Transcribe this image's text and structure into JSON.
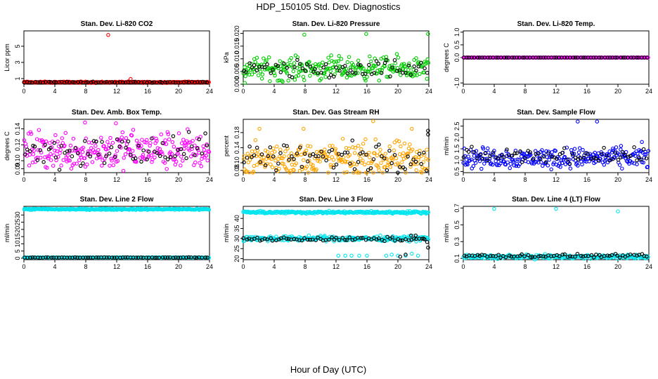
{
  "title": "HDP_150105  Std. Dev. Diagnostics",
  "xlabel": "Hour of Day (UTC)",
  "chart_data": [
    {
      "type": "scatter",
      "title": "Stan. Dev. Li-820 CO2",
      "ylabel": "Licor ppm",
      "xlim": [
        0,
        24
      ],
      "xticks": [
        0,
        4,
        8,
        12,
        16,
        20,
        24
      ],
      "ylim": [
        0.3,
        6.9
      ],
      "yticks": [
        1,
        3,
        5
      ],
      "series": [
        {
          "color": "#ff0000",
          "baseline": 0.55,
          "spread": 0.04,
          "outliers": [
            [
              10.9,
              6.4
            ],
            [
              13.8,
              0.95
            ],
            [
              0.05,
              0.6
            ]
          ]
        },
        {
          "color": "#000000",
          "baseline": 0.55,
          "spread": 0.03,
          "outliers": []
        }
      ]
    },
    {
      "type": "scatter",
      "title": "Stan. Dev. Li-820 Pressure",
      "ylabel": "kPa",
      "xlim": [
        0,
        24
      ],
      "xticks": [
        0,
        4,
        8,
        12,
        16,
        20,
        24
      ],
      "ylim": [
        0,
        0.021
      ],
      "yticks": [
        0.0,
        0.005,
        0.01,
        0.015,
        0.02
      ],
      "series": [
        {
          "color": "#00cc00",
          "baseline": 0.0062,
          "spread": 0.0022,
          "outliers": [
            [
              7.9,
              0.0195
            ],
            [
              15.9,
              0.0198
            ],
            [
              23.9,
              0.0198
            ],
            [
              0.2,
              0.0005
            ],
            [
              5.1,
              0.001
            ]
          ]
        },
        {
          "color": "#000000",
          "baseline": 0.0055,
          "spread": 0.0018,
          "outliers": []
        }
      ]
    },
    {
      "type": "scatter",
      "title": "Stan. Dev. Li-820 Temp.",
      "ylabel": "degrees C",
      "xlim": [
        0,
        24
      ],
      "xticks": [
        0,
        4,
        8,
        12,
        16,
        20,
        24
      ],
      "ylim": [
        -1.05,
        1.05
      ],
      "yticks": [
        -1.0,
        0.0,
        0.5,
        1.0
      ],
      "series": [
        {
          "color": "#ff00ff",
          "baseline": 0.0,
          "spread": 0.0,
          "outliers": []
        },
        {
          "color": "#000000",
          "baseline": 0.0,
          "spread": 0.0,
          "outliers": []
        }
      ]
    },
    {
      "type": "scatter",
      "title": "Stan. Dev. Amb. Box Temp.",
      "ylabel": "degrees C",
      "xlim": [
        0,
        24
      ],
      "xticks": [
        0,
        4,
        8,
        12,
        16,
        20,
        24
      ],
      "ylim": [
        0.085,
        0.152
      ],
      "yticks": [
        0.09,
        0.1,
        0.12,
        0.14
      ],
      "series": [
        {
          "color": "#ff00ff",
          "baseline": 0.113,
          "spread": 0.012,
          "outliers": [
            [
              7.9,
              0.148
            ],
            [
              11.9,
              0.147
            ]
          ]
        },
        {
          "color": "#000000",
          "baseline": 0.112,
          "spread": 0.01,
          "outliers": []
        }
      ]
    },
    {
      "type": "scatter",
      "title": "Stan. Dev. Gas Stream RH",
      "ylabel": "percent",
      "xlim": [
        0,
        24
      ],
      "xticks": [
        0,
        4,
        8,
        12,
        16,
        20,
        24
      ],
      "ylim": [
        0.074,
        0.215
      ],
      "yticks": [
        0.08,
        0.1,
        0.14,
        0.18
      ],
      "series": [
        {
          "color": "#ffa500",
          "baseline": 0.11,
          "spread": 0.022,
          "outliers": [
            [
              2.1,
              0.19
            ],
            [
              7.8,
              0.19
            ],
            [
              16.8,
              0.21
            ],
            [
              21.8,
              0.19
            ]
          ]
        },
        {
          "color": "#000000",
          "baseline": 0.115,
          "spread": 0.02,
          "outliers": [
            [
              23.9,
              0.185
            ],
            [
              23.9,
              0.175
            ]
          ]
        }
      ]
    },
    {
      "type": "scatter",
      "title": "Stan. Dev. Sample Flow",
      "ylabel": "ml/min",
      "xlim": [
        0,
        24
      ],
      "xticks": [
        0,
        4,
        8,
        12,
        16,
        20,
        24
      ],
      "ylim": [
        0.45,
        2.8
      ],
      "yticks": [
        0.5,
        1.0,
        1.5,
        2.0,
        2.5
      ],
      "series": [
        {
          "color": "#0000ff",
          "baseline": 1.1,
          "spread": 0.22,
          "outliers": [
            [
              14.8,
              2.7
            ],
            [
              17.3,
              2.7
            ],
            [
              23.1,
              1.8
            ]
          ]
        },
        {
          "color": "#000000",
          "baseline": 1.2,
          "spread": 0.15,
          "outliers": []
        }
      ]
    },
    {
      "type": "scatter",
      "title": "Stan. Dev. Line 2 Flow",
      "ylabel": "ml/min",
      "xlim": [
        0,
        24
      ],
      "xticks": [
        0,
        4,
        8,
        12,
        16,
        20,
        24
      ],
      "ylim": [
        -1,
        36
      ],
      "yticks": [
        0,
        5,
        10,
        15,
        20,
        25,
        30
      ],
      "series": [
        {
          "color": "#00e5ee",
          "baseline": 34.0,
          "spread": 0.25,
          "outliers": []
        },
        {
          "color": "#00e5ee",
          "baseline": 0.5,
          "spread": 0.1,
          "outliers": []
        },
        {
          "color": "#000000",
          "baseline": 0.5,
          "spread": 0.08,
          "outliers": []
        }
      ]
    },
    {
      "type": "scatter",
      "title": "Stan. Dev. Line 3 Flow",
      "ylabel": "ml/min",
      "xlim": [
        0,
        24
      ],
      "xticks": [
        0,
        4,
        8,
        12,
        16,
        20,
        24
      ],
      "ylim": [
        19.5,
        46
      ],
      "yticks": [
        20,
        25,
        30,
        35,
        40
      ],
      "series": [
        {
          "color": "#00e5ee",
          "baseline": 43.0,
          "spread": 0.3,
          "outliers": []
        },
        {
          "color": "#00e5ee",
          "baseline": 30.0,
          "spread": 0.6,
          "outliers": [
            [
              12.3,
              21.5
            ],
            [
              13.2,
              21.5
            ],
            [
              14.0,
              21.5
            ],
            [
              15.0,
              21.5
            ],
            [
              16.0,
              21.5
            ],
            [
              18.5,
              21.5
            ],
            [
              19.2,
              22.0
            ],
            [
              20.0,
              21.5
            ],
            [
              21.0,
              21.5
            ],
            [
              21.8,
              22.5
            ],
            [
              22.6,
              21.5
            ]
          ]
        },
        {
          "color": "#000000",
          "baseline": 29.7,
          "spread": 0.5,
          "outliers": [
            [
              20.3,
              21.0
            ],
            [
              21.0,
              22.0
            ],
            [
              21.7,
              31.5
            ],
            [
              22.3,
              31.5
            ],
            [
              23.3,
              30.0
            ],
            [
              23.9,
              25.5
            ]
          ]
        }
      ]
    },
    {
      "type": "scatter",
      "title": "Stan. Dev. Line 4 (LT) Flow",
      "ylabel": "ml/min",
      "xlim": [
        0,
        24
      ],
      "xticks": [
        0,
        4,
        8,
        12,
        16,
        20,
        24
      ],
      "ylim": [
        0.085,
        0.72
      ],
      "yticks": [
        0.1,
        0.3,
        0.5,
        0.7
      ],
      "series": [
        {
          "color": "#00e5ee",
          "baseline": 0.12,
          "spread": 0.012,
          "outliers": [
            [
              4.0,
              0.69
            ],
            [
              12.0,
              0.69
            ],
            [
              20.0,
              0.66
            ]
          ]
        },
        {
          "color": "#000000",
          "baseline": 0.13,
          "spread": 0.01,
          "outliers": []
        }
      ]
    }
  ]
}
